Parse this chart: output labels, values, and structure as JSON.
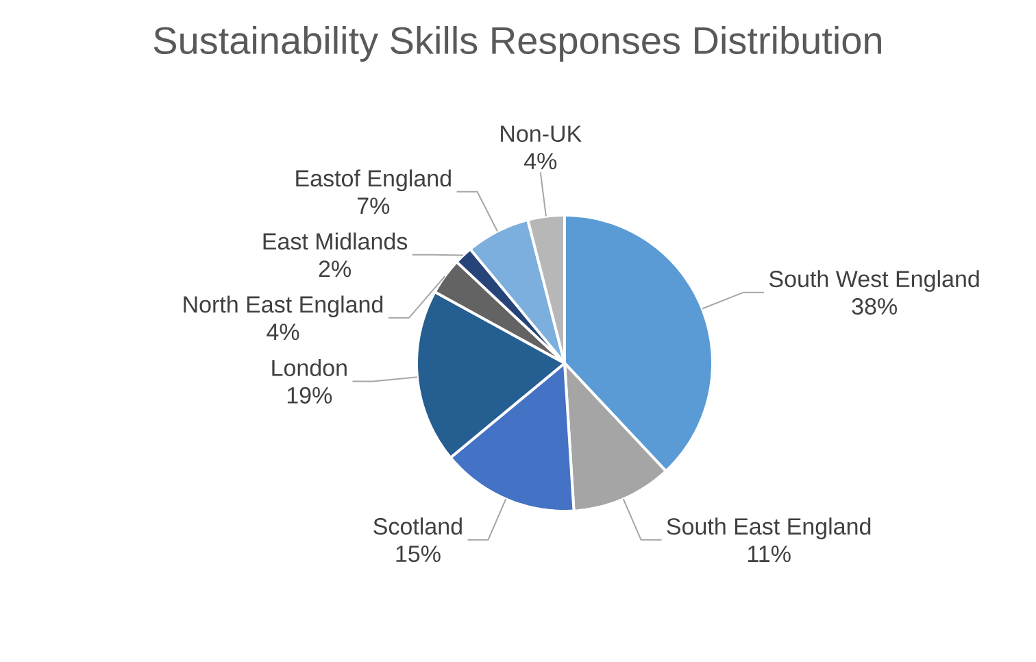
{
  "chart_data": {
    "type": "pie",
    "title": "Sustainability Skills Responses Distribution",
    "categories": [
      "South West England",
      "South East England",
      "Scotland",
      "London",
      "North East England",
      "East Midlands",
      "Eastof England",
      "Non-UK"
    ],
    "values": [
      38,
      11,
      15,
      19,
      4,
      2,
      7,
      4
    ],
    "value_labels": [
      "38%",
      "11%",
      "15%",
      "19%",
      "4%",
      "2%",
      "7%",
      "4%"
    ],
    "colors": [
      "#5b9bd5",
      "#a5a5a5",
      "#4472c4",
      "#255e91",
      "#636363",
      "#264478",
      "#7cafdd",
      "#b7b7b7"
    ]
  }
}
